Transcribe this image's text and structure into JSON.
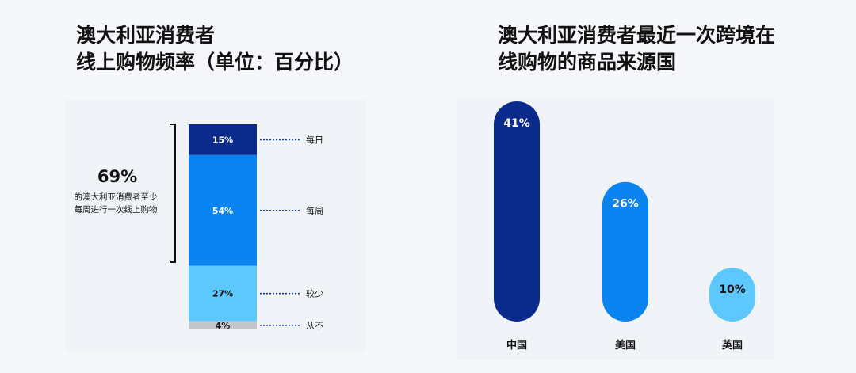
{
  "left_title": [
    "澳大利亚消费者",
    "线上购物频率（单位：百分比）"
  ],
  "right_title": [
    "澳大利亚消费者最近一次跨境在",
    "线购物的商品来源国"
  ],
  "annotation": {
    "value": "69%",
    "text": [
      "的澳大利亚消费者至少",
      "每周进行一次线上购物"
    ]
  },
  "chart_data": [
    {
      "type": "bar",
      "stacked": true,
      "title": "澳大利亚消费者线上购物频率（单位：百分比）",
      "categories": [
        "每日",
        "每周",
        "较少",
        "从不"
      ],
      "values": [
        15,
        54,
        27,
        4
      ],
      "labels": [
        "15%",
        "54%",
        "27%",
        "4%"
      ],
      "colors": [
        "#0a2a8c",
        "#0a84f0",
        "#5cc8ff",
        "#c4c6c9"
      ],
      "label_colors": [
        "#ffffff",
        "#ffffff",
        "#111111",
        "#111111"
      ]
    },
    {
      "type": "bar",
      "title": "澳大利亚消费者最近一次跨境在线购物的商品来源国",
      "categories": [
        "中国",
        "美国",
        "英国"
      ],
      "values": [
        41,
        26,
        10
      ],
      "labels": [
        "41%",
        "26%",
        "10%"
      ],
      "colors": [
        "#0a2a8c",
        "#0a84f0",
        "#5cc8ff"
      ],
      "label_colors": [
        "#ffffff",
        "#ffffff",
        "#111111"
      ],
      "ylim": [
        0,
        41
      ]
    }
  ]
}
